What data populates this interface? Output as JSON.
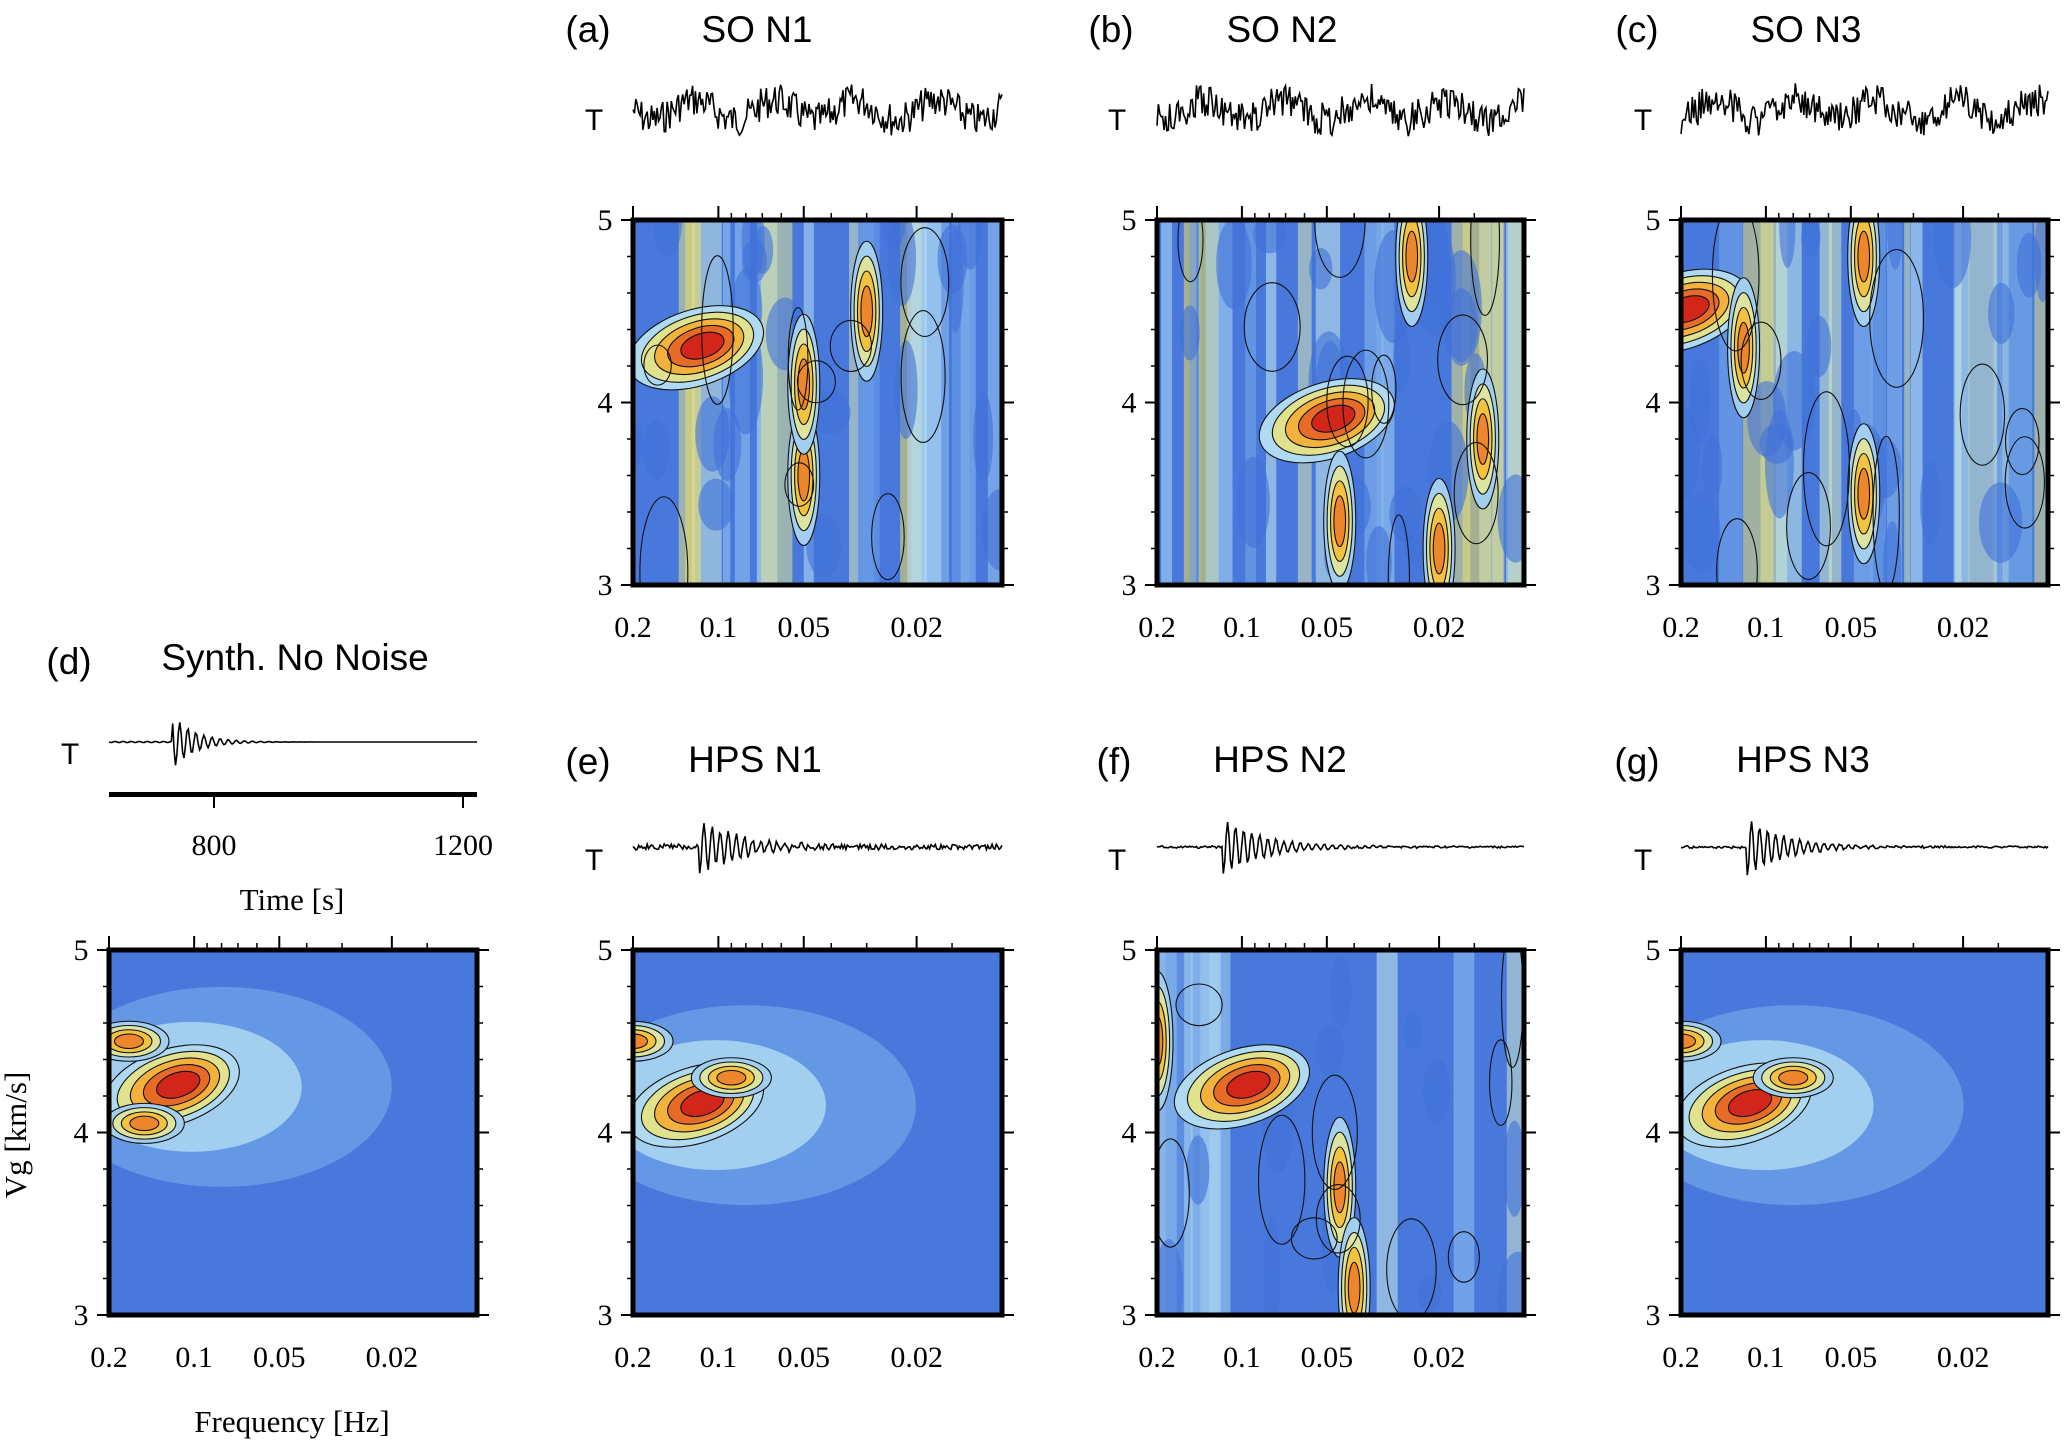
{
  "figure": {
    "trace_channel": "T",
    "time_axis_label": "Time [s]",
    "time_ticks": [
      "800",
      "1200"
    ],
    "y_axis_label": "Vg [km/s]",
    "x_axis_label": "Frequency [Hz]",
    "y_ticks": [
      "3",
      "4",
      "5"
    ],
    "x_ticks": [
      "0.2",
      "0.1",
      "0.05",
      "0.02"
    ]
  },
  "colors": {
    "low": "#3f6fd9",
    "mid": "#bfeaf4",
    "yellow": "#f2d33c",
    "orange": "#ee8a30",
    "high": "#d42a18"
  },
  "chart_data": [
    {
      "id": "a",
      "panel_label": "(a)",
      "title": "SO N1",
      "type": "heatmap",
      "pattern": "noisy",
      "peaks": [
        [
          0.12,
          4.3
        ],
        [
          0.05,
          3.6
        ],
        [
          0.05,
          4.1
        ],
        [
          0.03,
          4.5
        ]
      ]
    },
    {
      "id": "b",
      "panel_label": "(b)",
      "title": "SO N2",
      "type": "heatmap",
      "pattern": "noisy",
      "peaks": [
        [
          0.05,
          3.9
        ],
        [
          0.045,
          3.35
        ],
        [
          0.025,
          4.8
        ],
        [
          0.02,
          3.2
        ],
        [
          0.014,
          3.8
        ]
      ]
    },
    {
      "id": "c",
      "panel_label": "(c)",
      "title": "SO N3",
      "type": "heatmap",
      "pattern": "noisy",
      "peaks": [
        [
          0.2,
          4.5
        ],
        [
          0.12,
          4.3
        ],
        [
          0.045,
          3.5
        ],
        [
          0.045,
          4.8
        ]
      ]
    },
    {
      "id": "d",
      "panel_label": "(d)",
      "title": "Synth. No Noise",
      "type": "heatmap",
      "pattern": "clean",
      "peaks": [
        [
          0.12,
          4.25
        ],
        [
          0.17,
          4.5
        ],
        [
          0.15,
          4.05
        ]
      ]
    },
    {
      "id": "e",
      "panel_label": "(e)",
      "title": "HPS N1",
      "type": "heatmap",
      "pattern": "clean",
      "peaks": [
        [
          0.12,
          4.15
        ],
        [
          0.09,
          4.3
        ],
        [
          0.2,
          4.5
        ]
      ]
    },
    {
      "id": "f",
      "panel_label": "(f)",
      "title": "HPS N2",
      "type": "heatmap",
      "pattern": "mixed",
      "peaks": [
        [
          0.1,
          4.25
        ],
        [
          0.045,
          3.7
        ],
        [
          0.04,
          3.15
        ],
        [
          0.2,
          4.5
        ]
      ]
    },
    {
      "id": "g",
      "panel_label": "(g)",
      "title": "HPS N3",
      "type": "heatmap",
      "pattern": "clean",
      "peaks": [
        [
          0.12,
          4.15
        ],
        [
          0.08,
          4.3
        ],
        [
          0.2,
          4.5
        ]
      ]
    }
  ],
  "axes": {
    "vg_range": [
      3,
      5
    ],
    "freq_range": [
      0.2,
      0.01
    ],
    "time_range": [
      650,
      1200
    ]
  }
}
